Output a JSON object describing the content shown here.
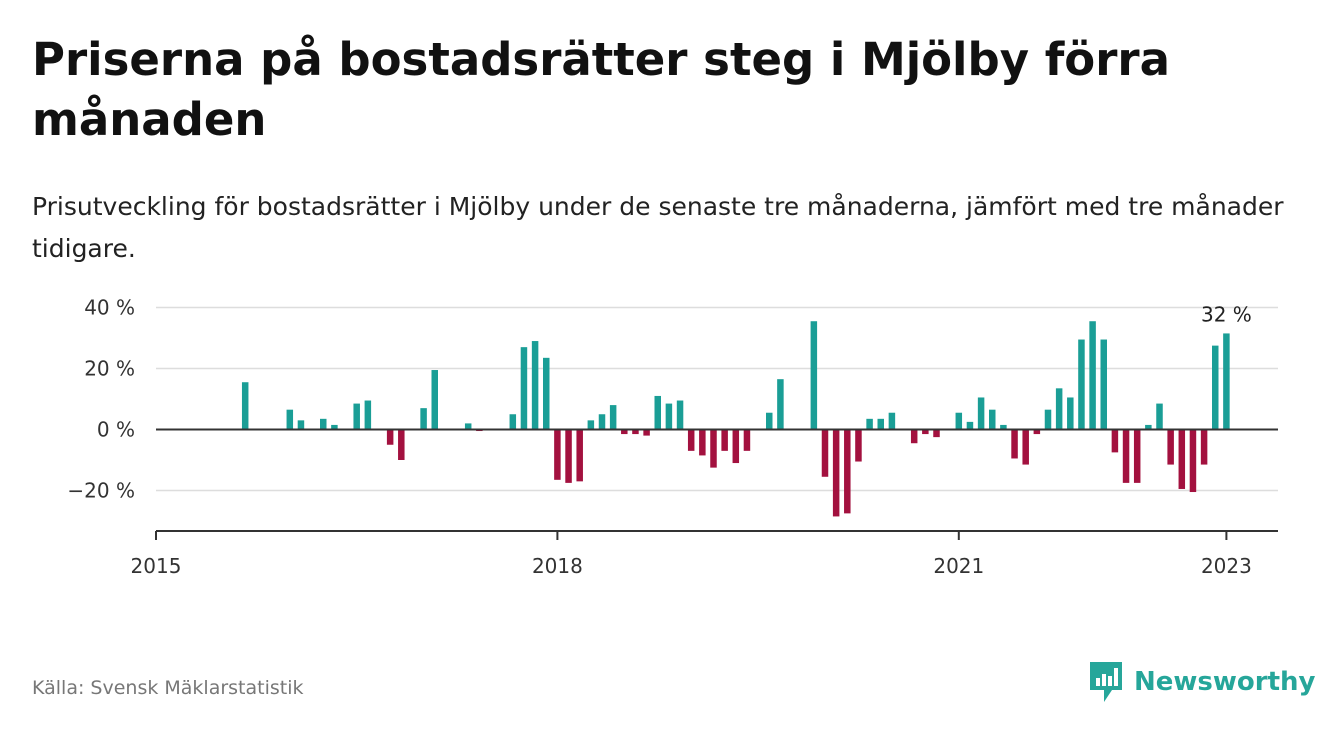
{
  "header": {
    "title": "Priserna på bostadsrätter steg i Mjölby förra månaden",
    "subtitle": "Prisutveckling för bostadsrätter i Mjölby under de senaste tre månaderna, jämfört med tre månader tidigare."
  },
  "footer": {
    "source": "Källa: Svensk Mäklarstatistik",
    "brand": "Newsworthy"
  },
  "colors": {
    "positive": "#1a9e96",
    "negative": "#a3113f",
    "grid": "#dddddd",
    "axis": "#333333",
    "brand": "#26a69a"
  },
  "chart_data": {
    "type": "bar",
    "title": "Priserna på bostadsrätter steg i Mjölby förra månaden",
    "subtitle": "Prisutveckling för bostadsrätter i Mjölby under de senaste tre månaderna, jämfört med tre månader tidigare.",
    "xlabel": "",
    "ylabel": "",
    "x_start": "2015-01",
    "x_end": "2023-04",
    "ylim": [
      -33,
      40
    ],
    "y_ticks": [
      40,
      20,
      0,
      -20
    ],
    "y_tick_labels": [
      "40 %",
      "20 %",
      "0 %",
      "−20 %"
    ],
    "x_ticks": [
      "2015-01",
      "2018-01",
      "2021-01",
      "2023-01"
    ],
    "x_tick_labels": [
      "2015",
      "2018",
      "2021",
      "2023"
    ],
    "grid": true,
    "legend": "none",
    "annotation": {
      "date": "2023-01",
      "label": "32 %"
    },
    "points": [
      {
        "date": "2015-09",
        "value": 15.5
      },
      {
        "date": "2016-01",
        "value": 6.5
      },
      {
        "date": "2016-02",
        "value": 3
      },
      {
        "date": "2016-04",
        "value": 3.5
      },
      {
        "date": "2016-05",
        "value": 1.5
      },
      {
        "date": "2016-07",
        "value": 8.5
      },
      {
        "date": "2016-08",
        "value": 9.5
      },
      {
        "date": "2016-10",
        "value": -5
      },
      {
        "date": "2016-11",
        "value": -10
      },
      {
        "date": "2017-01",
        "value": 7
      },
      {
        "date": "2017-02",
        "value": 19.5
      },
      {
        "date": "2017-05",
        "value": 2
      },
      {
        "date": "2017-06",
        "value": -0.5
      },
      {
        "date": "2017-09",
        "value": 5
      },
      {
        "date": "2017-10",
        "value": 27
      },
      {
        "date": "2017-11",
        "value": 29
      },
      {
        "date": "2017-12",
        "value": 23.5
      },
      {
        "date": "2018-01",
        "value": -16.5
      },
      {
        "date": "2018-02",
        "value": -17.5
      },
      {
        "date": "2018-03",
        "value": -17
      },
      {
        "date": "2018-04",
        "value": 3
      },
      {
        "date": "2018-05",
        "value": 5
      },
      {
        "date": "2018-06",
        "value": 8
      },
      {
        "date": "2018-07",
        "value": -1.5
      },
      {
        "date": "2018-08",
        "value": -1.5
      },
      {
        "date": "2018-09",
        "value": -2
      },
      {
        "date": "2018-10",
        "value": 11
      },
      {
        "date": "2018-11",
        "value": 8.5
      },
      {
        "date": "2018-12",
        "value": 9.5
      },
      {
        "date": "2019-01",
        "value": -7
      },
      {
        "date": "2019-02",
        "value": -8.5
      },
      {
        "date": "2019-03",
        "value": -12.5
      },
      {
        "date": "2019-04",
        "value": -7
      },
      {
        "date": "2019-05",
        "value": -11
      },
      {
        "date": "2019-06",
        "value": -7
      },
      {
        "date": "2019-08",
        "value": 5.5
      },
      {
        "date": "2019-09",
        "value": 16.5
      },
      {
        "date": "2019-12",
        "value": 35.5
      },
      {
        "date": "2020-01",
        "value": -15.5
      },
      {
        "date": "2020-02",
        "value": -28.5
      },
      {
        "date": "2020-03",
        "value": -27.5
      },
      {
        "date": "2020-04",
        "value": -10.5
      },
      {
        "date": "2020-05",
        "value": 3.5
      },
      {
        "date": "2020-06",
        "value": 3.5
      },
      {
        "date": "2020-07",
        "value": 5.5
      },
      {
        "date": "2020-09",
        "value": -4.5
      },
      {
        "date": "2020-10",
        "value": -1.5
      },
      {
        "date": "2020-11",
        "value": -2.5
      },
      {
        "date": "2021-01",
        "value": 5.5
      },
      {
        "date": "2021-02",
        "value": 2.5
      },
      {
        "date": "2021-03",
        "value": 10.5
      },
      {
        "date": "2021-04",
        "value": 6.5
      },
      {
        "date": "2021-05",
        "value": 1.5
      },
      {
        "date": "2021-06",
        "value": -9.5
      },
      {
        "date": "2021-07",
        "value": -11.5
      },
      {
        "date": "2021-08",
        "value": -1.5
      },
      {
        "date": "2021-09",
        "value": 6.5
      },
      {
        "date": "2021-10",
        "value": 13.5
      },
      {
        "date": "2021-11",
        "value": 10.5
      },
      {
        "date": "2021-12",
        "value": 29.5
      },
      {
        "date": "2022-01",
        "value": 35.5
      },
      {
        "date": "2022-02",
        "value": 29.5
      },
      {
        "date": "2022-03",
        "value": -7.5
      },
      {
        "date": "2022-04",
        "value": -17.5
      },
      {
        "date": "2022-05",
        "value": -17.5
      },
      {
        "date": "2022-06",
        "value": 1.5
      },
      {
        "date": "2022-07",
        "value": 8.5
      },
      {
        "date": "2022-08",
        "value": -11.5
      },
      {
        "date": "2022-09",
        "value": -19.5
      },
      {
        "date": "2022-10",
        "value": -20.5
      },
      {
        "date": "2022-11",
        "value": -11.5
      },
      {
        "date": "2022-12",
        "value": 27.5
      },
      {
        "date": "2023-01",
        "value": 31.5
      }
    ]
  }
}
